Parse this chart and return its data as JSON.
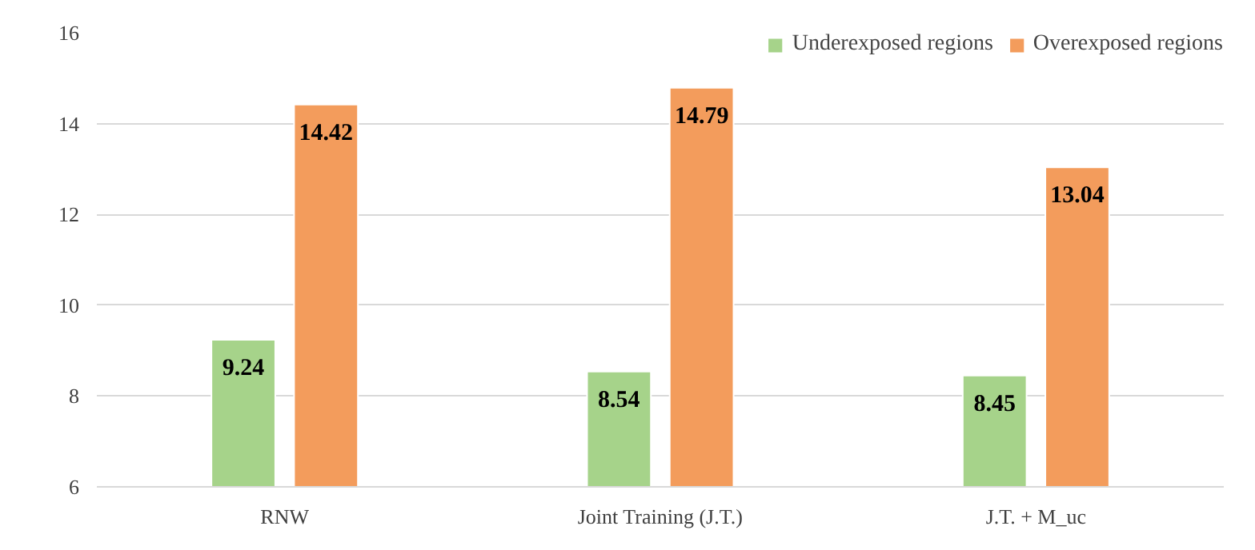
{
  "chart_data": {
    "type": "bar",
    "categories": [
      "RNW",
      "Joint Training (J.T.)",
      "J.T. + M_uc"
    ],
    "series": [
      {
        "name": "Underexposed regions",
        "color": "#a6d38a",
        "values": [
          9.24,
          8.54,
          8.45
        ]
      },
      {
        "name": "Overexposed regions",
        "color": "#f39c5c",
        "values": [
          14.42,
          14.79,
          13.04
        ]
      }
    ],
    "ylim": [
      6,
      16
    ],
    "yticks": [
      6,
      8,
      10,
      12,
      14,
      16
    ],
    "grid": "y",
    "legend": "top right",
    "data_labels": true
  }
}
